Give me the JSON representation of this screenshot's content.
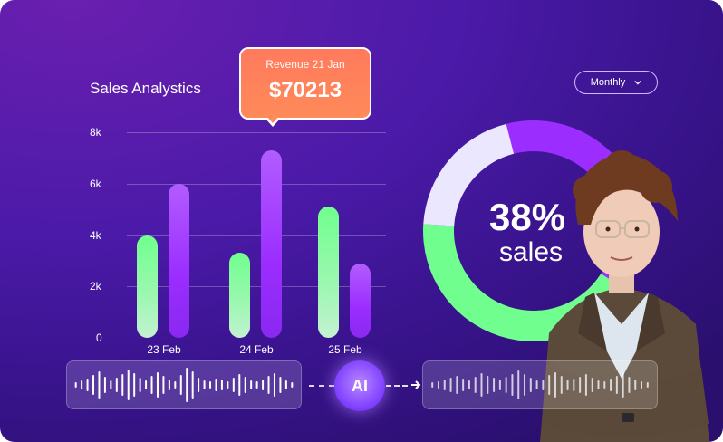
{
  "header": {
    "title": "Sales Analystics",
    "dropdown_label": "Monthly"
  },
  "tooltip": {
    "label": "Revenue 21 Jan",
    "value": "$70213"
  },
  "kpi": {
    "percent": "38%",
    "label": "sales"
  },
  "badge": {
    "label": "AI"
  },
  "colors": {
    "green": "#70ff8e",
    "purple": "#9b2dff",
    "light": "#eae7ff",
    "tooltip": "#ff7a5c"
  },
  "icons": {
    "dropdown": "chevron-down-icon",
    "arrow": "arrow-right-icon"
  },
  "chart_data": {
    "type": "bar",
    "categories": [
      "23 Feb",
      "24 Feb",
      "25 Feb"
    ],
    "series": [
      {
        "values": [
          4000,
          3300,
          5100
        ]
      },
      {
        "values": [
          6000,
          7300,
          2900
        ]
      }
    ],
    "y_ticks": [
      "0",
      "2k",
      "4k",
      "6k",
      "8k"
    ],
    "ylim": [
      0,
      8000
    ]
  },
  "donut_data": {
    "type": "pie",
    "segments": [
      {
        "value": 38,
        "color": "#9b2dff"
      },
      {
        "value": 42,
        "color": "#70ff8e"
      },
      {
        "value": 20,
        "color": "#eae7ff"
      }
    ]
  }
}
